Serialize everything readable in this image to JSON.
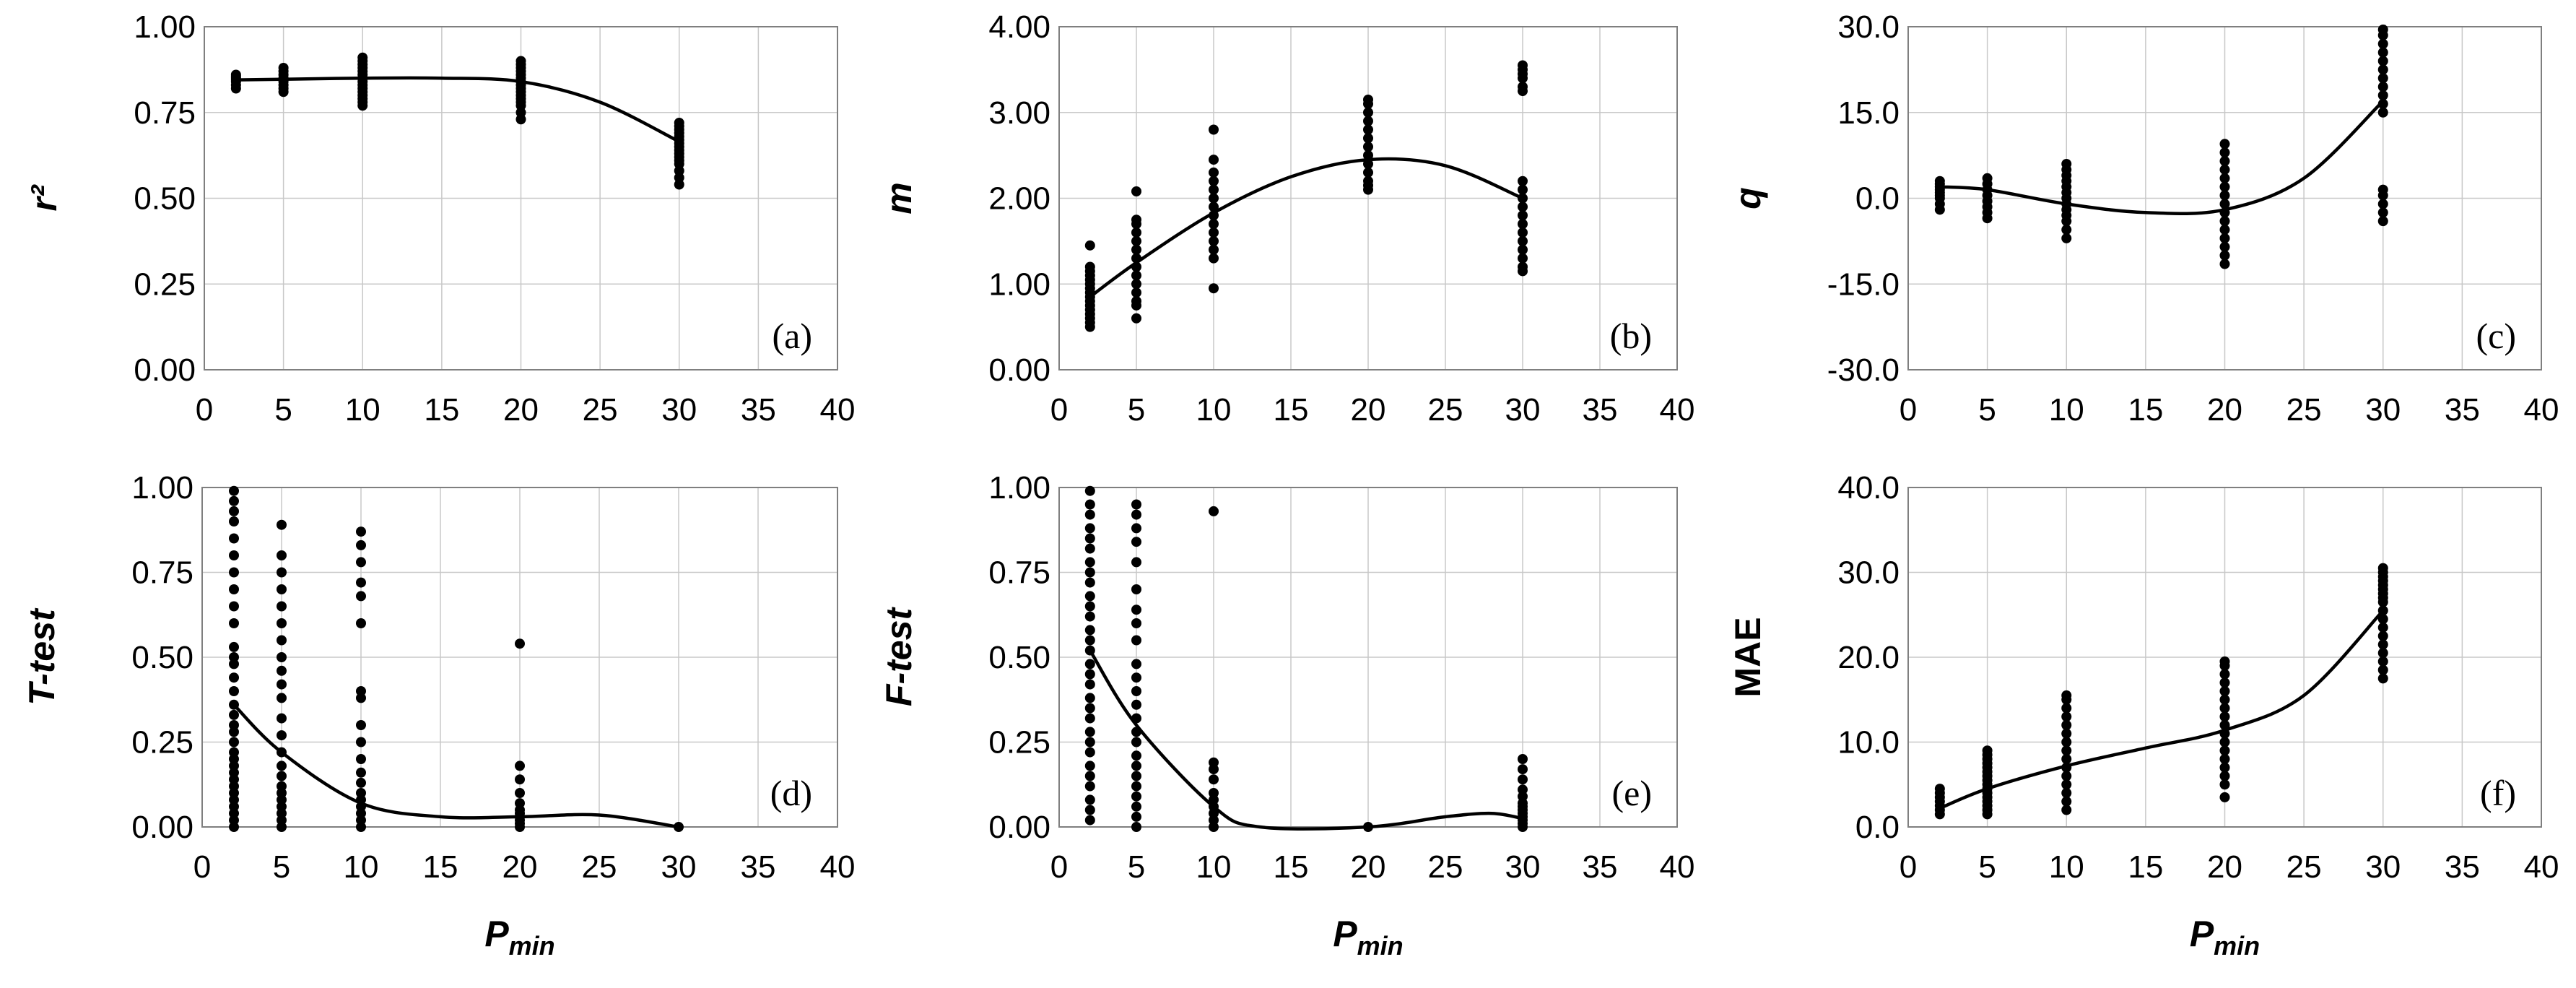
{
  "chart_data": [
    {
      "id": "a",
      "type": "scatter",
      "panel_label": "(a)",
      "xlabel": "",
      "ylabel": "r²",
      "xlim": [
        0,
        40
      ],
      "ylim": [
        0,
        1
      ],
      "xticks": [
        0,
        5,
        10,
        15,
        20,
        25,
        30,
        35,
        40
      ],
      "xtick_labels": [
        "0",
        "5",
        "10",
        "15",
        "20",
        "25",
        "30",
        "35",
        "40"
      ],
      "yticks": [
        0,
        0.25,
        0.5,
        0.75,
        1
      ],
      "ytick_labels": [
        "0.00",
        "0.25",
        "0.50",
        "0.75",
        "1.00"
      ],
      "grid": true,
      "series": [
        {
          "x": 2,
          "y": [
            0.82,
            0.83,
            0.84,
            0.845,
            0.85,
            0.855,
            0.86
          ]
        },
        {
          "x": 5,
          "y": [
            0.81,
            0.82,
            0.83,
            0.84,
            0.85,
            0.86,
            0.87,
            0.88
          ]
        },
        {
          "x": 10,
          "y": [
            0.77,
            0.78,
            0.79,
            0.8,
            0.81,
            0.82,
            0.83,
            0.84,
            0.85,
            0.86,
            0.87,
            0.88,
            0.89,
            0.9,
            0.91
          ]
        },
        {
          "x": 20,
          "y": [
            0.73,
            0.75,
            0.77,
            0.78,
            0.79,
            0.8,
            0.81,
            0.82,
            0.83,
            0.84,
            0.85,
            0.86,
            0.87,
            0.88,
            0.89,
            0.9
          ]
        },
        {
          "x": 30,
          "y": [
            0.54,
            0.56,
            0.58,
            0.6,
            0.61,
            0.62,
            0.63,
            0.64,
            0.65,
            0.66,
            0.67,
            0.68,
            0.69,
            0.7,
            0.71,
            0.72
          ]
        }
      ],
      "trend": {
        "x": [
          2,
          5,
          10,
          15,
          20,
          25,
          30
        ],
        "y": [
          0.845,
          0.847,
          0.85,
          0.85,
          0.84,
          0.78,
          0.665
        ]
      }
    },
    {
      "id": "b",
      "type": "scatter",
      "panel_label": "(b)",
      "xlabel": "",
      "ylabel": "m",
      "xlim": [
        0,
        40
      ],
      "ylim": [
        0,
        4
      ],
      "xticks": [
        0,
        5,
        10,
        15,
        20,
        25,
        30,
        35,
        40
      ],
      "xtick_labels": [
        "0",
        "5",
        "10",
        "15",
        "20",
        "25",
        "30",
        "35",
        "40"
      ],
      "yticks": [
        0,
        1,
        2,
        3,
        4
      ],
      "ytick_labels": [
        "0.00",
        "1.00",
        "2.00",
        "3.00",
        "4.00"
      ],
      "grid": true,
      "series": [
        {
          "x": 2,
          "y": [
            0.5,
            0.55,
            0.6,
            0.65,
            0.7,
            0.75,
            0.8,
            0.85,
            0.9,
            0.95,
            1.0,
            1.05,
            1.1,
            1.15,
            1.2,
            1.45
          ]
        },
        {
          "x": 5,
          "y": [
            0.6,
            0.75,
            0.8,
            0.9,
            1.0,
            1.1,
            1.2,
            1.3,
            1.4,
            1.5,
            1.6,
            1.7,
            1.75,
            2.08
          ]
        },
        {
          "x": 10,
          "y": [
            0.95,
            1.3,
            1.4,
            1.5,
            1.6,
            1.7,
            1.8,
            1.9,
            2.0,
            2.1,
            2.2,
            2.3,
            2.45,
            2.8
          ]
        },
        {
          "x": 20,
          "y": [
            2.1,
            2.15,
            2.2,
            2.3,
            2.4,
            2.5,
            2.6,
            2.7,
            2.8,
            2.9,
            3.0,
            3.1,
            3.15
          ]
        },
        {
          "x": 30,
          "y": [
            1.15,
            1.2,
            1.3,
            1.4,
            1.5,
            1.6,
            1.7,
            1.8,
            1.9,
            2.0,
            2.1,
            2.2,
            3.25,
            3.3,
            3.4,
            3.45,
            3.5,
            3.55
          ]
        }
      ],
      "trend": {
        "x": [
          2,
          5,
          10,
          15,
          20,
          25,
          30
        ],
        "y": [
          0.85,
          1.25,
          1.83,
          2.25,
          2.45,
          2.38,
          2.0
        ]
      }
    },
    {
      "id": "c",
      "type": "scatter",
      "panel_label": "(c)",
      "xlabel": "",
      "ylabel": "q",
      "xlim": [
        0,
        40
      ],
      "ylim": [
        -30,
        30
      ],
      "xticks": [
        0,
        5,
        10,
        15,
        20,
        25,
        30,
        35,
        40
      ],
      "xtick_labels": [
        "0",
        "5",
        "10",
        "15",
        "20",
        "25",
        "30",
        "35",
        "40"
      ],
      "yticks": [
        -30,
        -15,
        0,
        15,
        30
      ],
      "ytick_labels": [
        "-30.0",
        "-15.0",
        "0.0",
        "15.0",
        "30.0"
      ],
      "grid": true,
      "series": [
        {
          "x": 2,
          "y": [
            -2,
            -1,
            0,
            0.5,
            1,
            1.5,
            2,
            2.5,
            3
          ]
        },
        {
          "x": 5,
          "y": [
            -3.5,
            -2.5,
            -1.5,
            -0.5,
            0.5,
            1.5,
            2.5,
            3.5
          ]
        },
        {
          "x": 10,
          "y": [
            -7,
            -5.5,
            -4,
            -3,
            -2,
            -1,
            0,
            1,
            2,
            3,
            4,
            5,
            6
          ]
        },
        {
          "x": 20,
          "y": [
            -11.5,
            -10,
            -8.5,
            -7,
            -5.5,
            -4,
            -2.5,
            -1,
            0.5,
            2,
            3.5,
            5,
            6.5,
            8,
            9.5
          ]
        },
        {
          "x": 30,
          "y": [
            -4,
            -2.5,
            -1,
            0.5,
            1.5,
            15,
            16.5,
            18,
            19.5,
            21,
            22.5,
            24,
            25.5,
            27,
            28.5,
            29.5
          ]
        }
      ],
      "trend": {
        "x": [
          2,
          5,
          10,
          15,
          20,
          25,
          30
        ],
        "y": [
          2,
          1.5,
          -1,
          -2.5,
          -2,
          3.5,
          17
        ]
      }
    },
    {
      "id": "d",
      "type": "scatter",
      "panel_label": "(d)",
      "xlabel": "P",
      "xlabel_sub": "min",
      "ylabel": "T-test",
      "xlim": [
        0,
        40
      ],
      "ylim": [
        0,
        1
      ],
      "xticks": [
        0,
        5,
        10,
        15,
        20,
        25,
        30,
        35,
        40
      ],
      "xtick_labels": [
        "0",
        "5",
        "10",
        "15",
        "20",
        "25",
        "30",
        "35",
        "40"
      ],
      "yticks": [
        0,
        0.25,
        0.5,
        0.75,
        1
      ],
      "ytick_labels": [
        "0.00",
        "0.25",
        "0.50",
        "0.75",
        "1.00"
      ],
      "grid": true,
      "series": [
        {
          "x": 2,
          "y": [
            0.0,
            0.02,
            0.04,
            0.06,
            0.08,
            0.1,
            0.12,
            0.14,
            0.16,
            0.18,
            0.2,
            0.22,
            0.25,
            0.28,
            0.3,
            0.33,
            0.36,
            0.4,
            0.44,
            0.48,
            0.5,
            0.53,
            0.6,
            0.65,
            0.7,
            0.75,
            0.8,
            0.85,
            0.9,
            0.93,
            0.96,
            0.99
          ]
        },
        {
          "x": 5,
          "y": [
            0.0,
            0.02,
            0.04,
            0.06,
            0.08,
            0.1,
            0.12,
            0.15,
            0.18,
            0.22,
            0.27,
            0.32,
            0.38,
            0.42,
            0.46,
            0.5,
            0.55,
            0.6,
            0.65,
            0.7,
            0.75,
            0.8,
            0.89
          ]
        },
        {
          "x": 10,
          "y": [
            0.0,
            0.02,
            0.04,
            0.06,
            0.08,
            0.1,
            0.13,
            0.16,
            0.2,
            0.25,
            0.3,
            0.38,
            0.4,
            0.6,
            0.68,
            0.72,
            0.78,
            0.83,
            0.87
          ]
        },
        {
          "x": 20,
          "y": [
            0.0,
            0.01,
            0.02,
            0.03,
            0.04,
            0.05,
            0.07,
            0.1,
            0.14,
            0.18,
            0.54
          ]
        },
        {
          "x": 30,
          "y": [
            0.0
          ]
        }
      ],
      "trend": {
        "x": [
          2,
          5,
          10,
          15,
          20,
          25,
          30
        ],
        "y": [
          0.36,
          0.22,
          0.07,
          0.03,
          0.03,
          0.035,
          0.0
        ]
      }
    },
    {
      "id": "e",
      "type": "scatter",
      "panel_label": "(e)",
      "xlabel": "P",
      "xlabel_sub": "min",
      "ylabel": "F-test",
      "xlim": [
        0,
        40
      ],
      "ylim": [
        0,
        1
      ],
      "xticks": [
        0,
        5,
        10,
        15,
        20,
        25,
        30,
        35,
        40
      ],
      "xtick_labels": [
        "0",
        "5",
        "10",
        "15",
        "20",
        "25",
        "30",
        "35",
        "40"
      ],
      "yticks": [
        0,
        0.25,
        0.5,
        0.75,
        1
      ],
      "ytick_labels": [
        "0.00",
        "0.25",
        "0.50",
        "0.75",
        "1.00"
      ],
      "grid": true,
      "series": [
        {
          "x": 2,
          "y": [
            0.02,
            0.05,
            0.08,
            0.12,
            0.15,
            0.18,
            0.22,
            0.25,
            0.28,
            0.32,
            0.35,
            0.38,
            0.42,
            0.45,
            0.48,
            0.52,
            0.55,
            0.58,
            0.62,
            0.65,
            0.68,
            0.72,
            0.75,
            0.78,
            0.82,
            0.85,
            0.88,
            0.92,
            0.95,
            0.99
          ]
        },
        {
          "x": 5,
          "y": [
            0.0,
            0.03,
            0.06,
            0.09,
            0.12,
            0.15,
            0.18,
            0.21,
            0.25,
            0.28,
            0.32,
            0.36,
            0.4,
            0.44,
            0.48,
            0.55,
            0.6,
            0.64,
            0.7,
            0.78,
            0.84,
            0.88,
            0.92,
            0.95
          ]
        },
        {
          "x": 10,
          "y": [
            0.0,
            0.02,
            0.04,
            0.06,
            0.08,
            0.1,
            0.14,
            0.17,
            0.19,
            0.93
          ]
        },
        {
          "x": 20,
          "y": [
            0.0
          ]
        },
        {
          "x": 30,
          "y": [
            0.0,
            0.01,
            0.02,
            0.03,
            0.04,
            0.05,
            0.06,
            0.07,
            0.09,
            0.11,
            0.14,
            0.17,
            0.2
          ]
        }
      ],
      "trend": {
        "x": [
          2,
          5,
          10,
          13,
          20,
          25,
          28,
          30
        ],
        "y": [
          0.52,
          0.3,
          0.06,
          0.0,
          0.0,
          0.03,
          0.04,
          0.025
        ]
      }
    },
    {
      "id": "f",
      "type": "scatter",
      "panel_label": "(f)",
      "xlabel": "P",
      "xlabel_sub": "min",
      "ylabel": "MAE",
      "xlim": [
        0,
        40
      ],
      "ylim": [
        0,
        40
      ],
      "xticks": [
        0,
        5,
        10,
        15,
        20,
        25,
        30,
        35,
        40
      ],
      "xtick_labels": [
        "0",
        "5",
        "10",
        "15",
        "20",
        "25",
        "30",
        "35",
        "40"
      ],
      "yticks": [
        0,
        10,
        20,
        30,
        40
      ],
      "ytick_labels": [
        "0.0",
        "10.0",
        "20.0",
        "30.0",
        "40.0"
      ],
      "grid": true,
      "series": [
        {
          "x": 2,
          "y": [
            1.5,
            2,
            2.5,
            3,
            3.5,
            4,
            4.5
          ]
        },
        {
          "x": 5,
          "y": [
            1.5,
            2,
            2.5,
            3,
            3.5,
            4,
            4.5,
            5,
            5.5,
            6,
            6.5,
            7,
            7.5,
            8,
            8.5,
            9
          ]
        },
        {
          "x": 10,
          "y": [
            2,
            3,
            4,
            5,
            6,
            7,
            8,
            9,
            10,
            11,
            12,
            13,
            14,
            15,
            15.5
          ]
        },
        {
          "x": 20,
          "y": [
            3.5,
            5,
            6,
            7,
            8,
            9,
            10,
            11,
            12,
            13,
            14,
            15,
            16,
            17,
            18,
            19,
            19.5
          ]
        },
        {
          "x": 30,
          "y": [
            17.5,
            18.5,
            19.5,
            20.5,
            21.5,
            22.5,
            23.5,
            24.5,
            25.5,
            26.5,
            27,
            27.5,
            28,
            28.5,
            29,
            29.5,
            30,
            30.5
          ]
        }
      ],
      "trend": {
        "x": [
          2,
          5,
          10,
          15,
          20,
          25,
          30
        ],
        "y": [
          2.2,
          4.5,
          7.2,
          9.3,
          11.4,
          15.5,
          25.5
        ]
      }
    }
  ]
}
